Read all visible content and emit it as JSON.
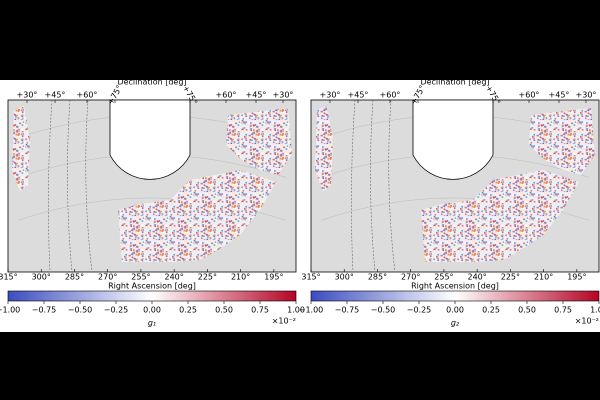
{
  "chart_data": [
    {
      "type": "map",
      "top_label": "Declination [deg]",
      "x_label": "Right Ascension [deg]",
      "xlim": [
        315,
        185
      ],
      "xticks": [
        {
          "value": 315,
          "label": "315°"
        },
        {
          "value": 300,
          "label": "300°"
        },
        {
          "value": 285,
          "label": "285°"
        },
        {
          "value": 270,
          "label": "270°"
        },
        {
          "value": 255,
          "label": "255°"
        },
        {
          "value": 240,
          "label": "240°"
        },
        {
          "value": 225,
          "label": "225°"
        },
        {
          "value": 210,
          "label": "210°"
        },
        {
          "value": 195,
          "label": "195°"
        }
      ],
      "dec_ticks": [
        {
          "value": 30,
          "label": "+30°"
        },
        {
          "value": 45,
          "label": "+45°"
        },
        {
          "value": 60,
          "label": "+60°"
        },
        {
          "value": 75,
          "label": "+75°"
        },
        {
          "value": 75,
          "label": "+75°"
        },
        {
          "value": 60,
          "label": "+60°"
        },
        {
          "value": 45,
          "label": "+45°"
        },
        {
          "value": 30,
          "label": "+30°"
        }
      ],
      "colorbar": {
        "label": "g₁",
        "offset_label": "×10⁻²",
        "clim": [
          -1,
          1
        ],
        "cmap": [
          "#3b4cc0",
          "#ffffff",
          "#b40426"
        ],
        "ticks": [
          {
            "value": -1,
            "label": "−1.00"
          },
          {
            "value": -0.75,
            "label": "−0.75"
          },
          {
            "value": -0.5,
            "label": "−0.50"
          },
          {
            "value": -0.25,
            "label": "−0.25"
          },
          {
            "value": 0,
            "label": "0.00"
          },
          {
            "value": 0.25,
            "label": "0.25"
          },
          {
            "value": 0.5,
            "label": "0.50"
          },
          {
            "value": 0.75,
            "label": "0.75"
          },
          {
            "value": 1,
            "label": "1.00"
          }
        ]
      }
    },
    {
      "type": "map",
      "top_label": "Declination [deg]",
      "x_label": "Right Ascension [deg]",
      "xlim": [
        315,
        185
      ],
      "xticks": [
        {
          "value": 315,
          "label": "315°"
        },
        {
          "value": 300,
          "label": "300°"
        },
        {
          "value": 285,
          "label": "285°"
        },
        {
          "value": 270,
          "label": "270°"
        },
        {
          "value": 255,
          "label": "255°"
        },
        {
          "value": 240,
          "label": "240°"
        },
        {
          "value": 225,
          "label": "225°"
        },
        {
          "value": 210,
          "label": "210°"
        },
        {
          "value": 195,
          "label": "195°"
        }
      ],
      "dec_ticks": [
        {
          "value": 30,
          "label": "+30°"
        },
        {
          "value": 45,
          "label": "+45°"
        },
        {
          "value": 60,
          "label": "+60°"
        },
        {
          "value": 75,
          "label": "+75°"
        },
        {
          "value": 75,
          "label": "+75°"
        },
        {
          "value": 60,
          "label": "+60°"
        },
        {
          "value": 45,
          "label": "+45°"
        },
        {
          "value": 30,
          "label": "+30°"
        }
      ],
      "colorbar": {
        "label": "g₂",
        "offset_label": "×10⁻²",
        "clim": [
          -1,
          1
        ],
        "cmap": [
          "#3b4cc0",
          "#ffffff",
          "#b40426"
        ],
        "ticks": [
          {
            "value": -1,
            "label": "−1.00"
          },
          {
            "value": -0.75,
            "label": "−0.75"
          },
          {
            "value": -0.5,
            "label": "−0.50"
          },
          {
            "value": -0.25,
            "label": "−0.25"
          },
          {
            "value": 0,
            "label": "0.00"
          },
          {
            "value": 0.25,
            "label": "0.25"
          },
          {
            "value": 0.5,
            "label": "0.50"
          },
          {
            "value": 0.75,
            "label": "0.75"
          },
          {
            "value": 1,
            "label": "1.00"
          }
        ]
      }
    }
  ]
}
